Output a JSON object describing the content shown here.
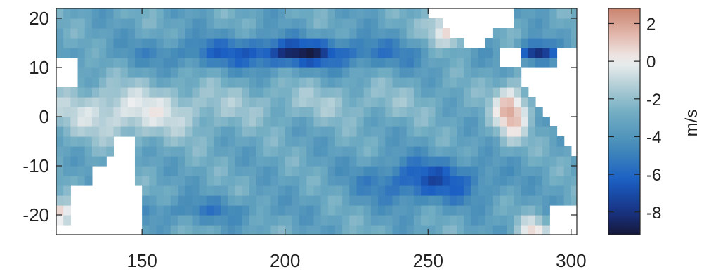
{
  "chart_data": {
    "type": "heatmap",
    "title": "",
    "xlabel": "",
    "ylabel": "",
    "xlim": [
      120,
      302
    ],
    "ylim": [
      -24,
      22
    ],
    "xticks": [
      150,
      200,
      250,
      300
    ],
    "yticks": [
      -20,
      -10,
      0,
      10,
      20
    ],
    "colorbar": {
      "label": "m/s",
      "range": [
        -9.2,
        2.8
      ],
      "ticks": [
        2,
        0,
        -2,
        -4,
        -6,
        -8
      ]
    },
    "colors": {
      "positive": "#c98570",
      "zero": "#efefef",
      "negative_mid": "#4f96b8",
      "negative_strong": "#1b5fc4",
      "negative_min": "#16193a"
    },
    "grid_resolution": {
      "lon_step": 2.5,
      "lat_step": 2.0
    },
    "features": [
      {
        "name": "northern easterly band",
        "lon": [
          150,
          240
        ],
        "lat": [
          10,
          16
        ],
        "value": -6.5
      },
      {
        "name": "northern core minimum",
        "lon": [
          205,
          205
        ],
        "lat": [
          13,
          13
        ],
        "value": -8.8
      },
      {
        "name": "northeast core minimum",
        "lon": [
          287,
          287
        ],
        "lat": [
          13,
          13
        ],
        "value": -9.0
      },
      {
        "name": "southeast easterly band",
        "lon": [
          225,
          275
        ],
        "lat": [
          -18,
          -8
        ],
        "value": -6.3
      },
      {
        "name": "western weak zone",
        "lon": [
          120,
          175
        ],
        "lat": [
          -6,
          8
        ],
        "value": -1.0
      },
      {
        "name": "eastern westerly zone",
        "lon": [
          272,
          284
        ],
        "lat": [
          -5,
          7
        ],
        "value": 1.8
      },
      {
        "name": "northeast coastal westerly",
        "lon": [
          250,
          265
        ],
        "lat": [
          14,
          22
        ],
        "value": 1.2
      },
      {
        "name": "southwest westerly",
        "lon": [
          120,
          126
        ],
        "lat": [
          -22,
          -18
        ],
        "value": 1.5
      }
    ]
  }
}
